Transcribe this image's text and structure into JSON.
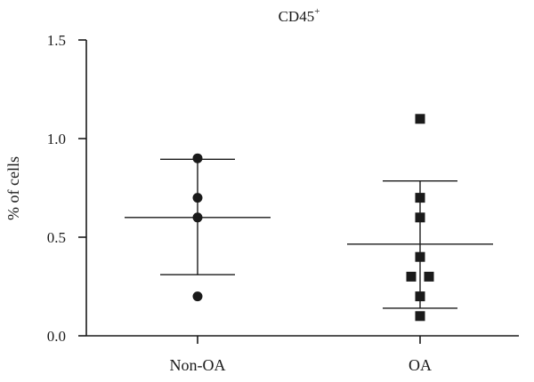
{
  "chart_data": {
    "type": "scatter",
    "title": "CD45",
    "title_superscript": "+",
    "xlabel": "",
    "ylabel": "% of cells",
    "ylim": [
      0,
      1.5
    ],
    "yticks": [
      "0.0",
      "0.5",
      "1.0",
      "1.5"
    ],
    "grid": false,
    "categories": [
      "Non-OA",
      "OA"
    ],
    "series": [
      {
        "category": "Non-OA",
        "marker": "circle",
        "values": [
          0.9,
          0.7,
          0.6,
          0.2
        ],
        "mean": 0.6,
        "error_upper": 0.895,
        "error_lower": 0.31
      },
      {
        "category": "OA",
        "marker": "square",
        "values": [
          1.1,
          0.7,
          0.6,
          0.4,
          0.3,
          0.3,
          0.2,
          0.1
        ],
        "mean": 0.465,
        "error_upper": 0.785,
        "error_lower": 0.14
      }
    ]
  }
}
